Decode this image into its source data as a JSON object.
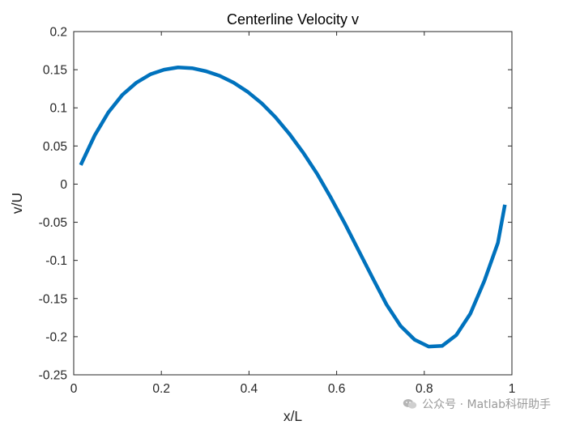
{
  "chart_data": {
    "type": "line",
    "title": "Centerline Velocity v",
    "xlabel": "x/L",
    "ylabel": "v/U",
    "xlim": [
      0,
      1
    ],
    "ylim": [
      -0.25,
      0.2
    ],
    "xticks": [
      0,
      0.2,
      0.4,
      0.6,
      0.8,
      1
    ],
    "xtick_labels": [
      "0",
      "0.2",
      "0.4",
      "0.6",
      "0.8",
      "1"
    ],
    "yticks": [
      0.2,
      0.15,
      0.1,
      0.05,
      0,
      -0.05,
      -0.1,
      -0.15,
      -0.2,
      -0.25
    ],
    "ytick_labels": [
      "0.2",
      "0.15",
      "0.1",
      "0.05",
      "0",
      "-0.05",
      "-0.1",
      "-0.15",
      "-0.2",
      "-0.25"
    ],
    "grid": false,
    "series": [
      {
        "color": "#0072BD",
        "x": [
          0.016,
          0.048,
          0.079,
          0.111,
          0.143,
          0.175,
          0.206,
          0.238,
          0.27,
          0.302,
          0.333,
          0.365,
          0.397,
          0.429,
          0.46,
          0.492,
          0.524,
          0.556,
          0.587,
          0.619,
          0.651,
          0.683,
          0.714,
          0.746,
          0.778,
          0.81,
          0.841,
          0.873,
          0.905,
          0.937,
          0.968,
          0.984
        ],
        "y": [
          0.025,
          0.064,
          0.094,
          0.117,
          0.133,
          0.144,
          0.15,
          0.153,
          0.152,
          0.148,
          0.142,
          0.133,
          0.121,
          0.106,
          0.088,
          0.066,
          0.041,
          0.013,
          -0.018,
          -0.052,
          -0.088,
          -0.124,
          -0.158,
          -0.186,
          -0.204,
          -0.213,
          -0.212,
          -0.198,
          -0.17,
          -0.127,
          -0.077,
          -0.027
        ]
      }
    ]
  },
  "watermark": {
    "text": "公众号 · Matlab科研助手",
    "icon": "wechat-icon"
  }
}
